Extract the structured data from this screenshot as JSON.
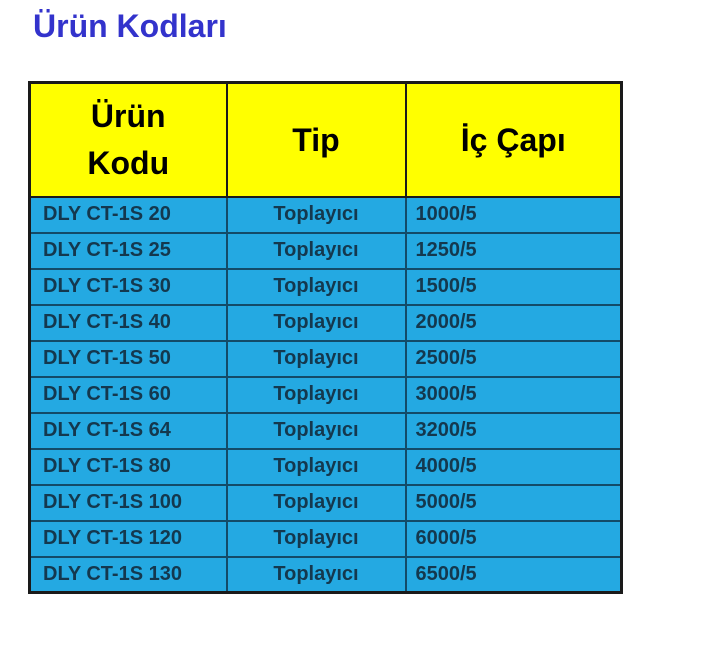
{
  "page": {
    "title": "Ürün Kodları"
  },
  "colors": {
    "title_text": "#3333CC",
    "header_bg": "#FFFF00",
    "header_text": "#000000",
    "row_bg": "#24A9E2",
    "row_text": "#14384E",
    "outer_border": "#1A1A1A",
    "row_border": "#134B68"
  },
  "table": {
    "headers": [
      "Ürün Kodu",
      "Tip",
      "İç Çapı"
    ],
    "rows": [
      {
        "code": "DLY CT-1S 20",
        "tip": "Toplayıcı",
        "cap": "1000/5"
      },
      {
        "code": "DLY CT-1S 25",
        "tip": "Toplayıcı",
        "cap": "1250/5"
      },
      {
        "code": "DLY CT-1S 30",
        "tip": "Toplayıcı",
        "cap": "1500/5"
      },
      {
        "code": "DLY CT-1S 40",
        "tip": "Toplayıcı",
        "cap": "2000/5"
      },
      {
        "code": "DLY CT-1S 50",
        "tip": "Toplayıcı",
        "cap": "2500/5"
      },
      {
        "code": "DLY CT-1S 60",
        "tip": "Toplayıcı",
        "cap": "3000/5"
      },
      {
        "code": "DLY CT-1S 64",
        "tip": "Toplayıcı",
        "cap": "3200/5"
      },
      {
        "code": "DLY CT-1S 80",
        "tip": "Toplayıcı",
        "cap": "4000/5"
      },
      {
        "code": "DLY CT-1S 100",
        "tip": "Toplayıcı",
        "cap": "5000/5"
      },
      {
        "code": "DLY CT-1S 120",
        "tip": "Toplayıcı",
        "cap": "6000/5"
      },
      {
        "code": "DLY CT-1S 130",
        "tip": "Toplayıcı",
        "cap": "6500/5"
      }
    ]
  }
}
